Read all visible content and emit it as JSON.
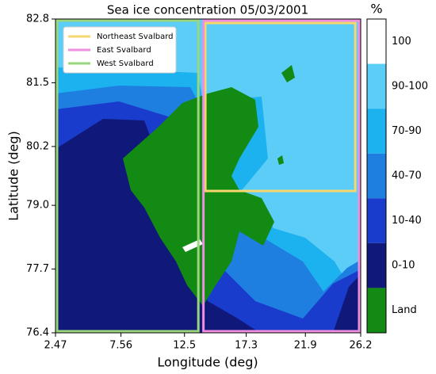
{
  "chart_data": {
    "type": "map",
    "title": "Sea ice concentration 05/03/2001",
    "x_label": "Longitude (deg)",
    "y_label": "Latitude (deg)",
    "xlim": [
      2.47,
      26.2
    ],
    "xticks": [
      2.47,
      7.56,
      12.5,
      17.3,
      21.9,
      26.2
    ],
    "ylim": [
      76.4,
      82.8
    ],
    "yticks": [
      76.4,
      77.7,
      {
        "value": 79,
        "label": "79.0"
      },
      80.2,
      81.5,
      82.8
    ],
    "legend": "upper left",
    "regions": [
      {
        "name": "Northeast Svalbard",
        "color": "#f5d76e",
        "lon": [
          14.0,
          25.9
        ],
        "lat": [
          79.26,
          82.75
        ]
      },
      {
        "name": "East Svalbard",
        "color": "#f08ee0",
        "lon": [
          13.85,
          26.2
        ],
        "lat": [
          76.4,
          82.8
        ]
      },
      {
        "name": "West Svalbard",
        "color": "#9ad67e",
        "lon": [
          2.47,
          13.7
        ],
        "lat": [
          76.4,
          82.8
        ]
      }
    ],
    "colorbar_label": "%",
    "colorbar": [
      {
        "label": "100",
        "color": "#ffffff"
      },
      {
        "label": "90-100",
        "color": "#5ccdf7"
      },
      {
        "label": "70-90",
        "color": "#1cb2ef"
      },
      {
        "label": "40-70",
        "color": "#1e7fe0"
      },
      {
        "label": "10-40",
        "color": "#1a3ccc"
      },
      {
        "label": "0-10",
        "color": "#10197a"
      },
      {
        "label": "Land",
        "color": "#138a13"
      }
    ]
  }
}
